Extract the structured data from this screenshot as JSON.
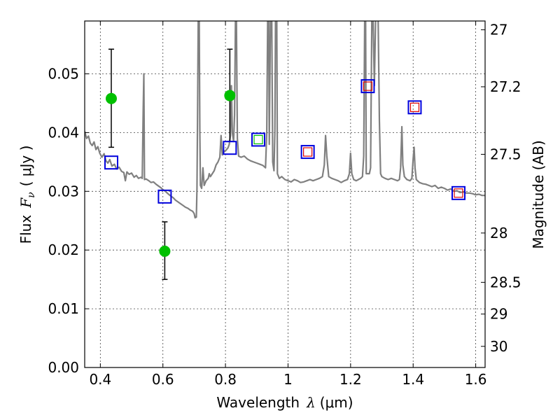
{
  "chart_data": {
    "type": "scatter",
    "xlabel_prefix": "Wavelength",
    "xlabel_symbol": "λ",
    "xlabel_unit": "(μm)",
    "ylabel_prefix": "Flux",
    "ylabel_symbol": "F",
    "ylabel_subscript": "ν",
    "ylabel_unit": "( μJy )",
    "y2label": "Magnitude (AB)",
    "xlim": [
      0.35,
      1.63
    ],
    "ylim": [
      0.0,
      0.059
    ],
    "grid": true,
    "x_ticks": [
      {
        "value": 0.4,
        "label": "0.4"
      },
      {
        "value": 0.6,
        "label": "0.6"
      },
      {
        "value": 0.8,
        "label": "0.8"
      },
      {
        "value": 1.0,
        "label": "1"
      },
      {
        "value": 1.2,
        "label": "1.2"
      },
      {
        "value": 1.4,
        "label": "1.4"
      },
      {
        "value": 1.6,
        "label": "1.6"
      }
    ],
    "y_ticks": [
      {
        "value": 0.0,
        "label": "0.00"
      },
      {
        "value": 0.01,
        "label": "0.01"
      },
      {
        "value": 0.02,
        "label": "0.02"
      },
      {
        "value": 0.03,
        "label": "0.03"
      },
      {
        "value": 0.04,
        "label": "0.04"
      },
      {
        "value": 0.05,
        "label": "0.05"
      }
    ],
    "y2_ticks": [
      {
        "flux": 0.0575,
        "label": "27"
      },
      {
        "flux": 0.0478,
        "label": "27.2"
      },
      {
        "flux": 0.0363,
        "label": "27.5"
      },
      {
        "flux": 0.0229,
        "label": "28"
      },
      {
        "flux": 0.0145,
        "label": "28.5"
      },
      {
        "flux": 0.0091,
        "label": "29"
      },
      {
        "flux": 0.0036,
        "label": "30"
      }
    ],
    "observed_points": [
      {
        "x": 0.435,
        "y": 0.0458,
        "yerr_low": 0.0375,
        "yerr_high": 0.0542,
        "color": "#00c000"
      },
      {
        "x": 0.606,
        "y": 0.0198,
        "yerr_low": 0.015,
        "yerr_high": 0.0248,
        "color": "#00c000"
      },
      {
        "x": 0.814,
        "y": 0.0463,
        "yerr_low": 0.0385,
        "yerr_high": 0.0542,
        "color": "#00c000"
      }
    ],
    "model_points": [
      {
        "x": 0.435,
        "y": 0.0349,
        "outer": "#0000dd",
        "inner": null
      },
      {
        "x": 0.606,
        "y": 0.0291,
        "outer": "#0000dd",
        "inner": null
      },
      {
        "x": 0.814,
        "y": 0.0374,
        "outer": "#0000dd",
        "inner": null
      },
      {
        "x": 0.905,
        "y": 0.0388,
        "outer": "#0000dd",
        "inner": "#00c000"
      },
      {
        "x": 1.063,
        "y": 0.0367,
        "outer": "#0000dd",
        "inner": "#dd0000"
      },
      {
        "x": 1.255,
        "y": 0.0479,
        "outer": "#0000dd",
        "inner": "#dd0000"
      },
      {
        "x": 1.405,
        "y": 0.0443,
        "outer": "#0000dd",
        "inner": "#dd0000"
      },
      {
        "x": 1.545,
        "y": 0.0297,
        "outer": "#0000dd",
        "inner": "#dd0000"
      }
    ],
    "spectrum": [
      [
        0.35,
        0.0402
      ],
      [
        0.356,
        0.039
      ],
      [
        0.362,
        0.0394
      ],
      [
        0.368,
        0.0382
      ],
      [
        0.374,
        0.0378
      ],
      [
        0.38,
        0.0384
      ],
      [
        0.386,
        0.0371
      ],
      [
        0.392,
        0.0376
      ],
      [
        0.398,
        0.0365
      ],
      [
        0.405,
        0.0358
      ],
      [
        0.412,
        0.0364
      ],
      [
        0.418,
        0.0352
      ],
      [
        0.424,
        0.0348
      ],
      [
        0.43,
        0.0354
      ],
      [
        0.437,
        0.0343
      ],
      [
        0.445,
        0.0346
      ],
      [
        0.452,
        0.0338
      ],
      [
        0.46,
        0.0341
      ],
      [
        0.468,
        0.0334
      ],
      [
        0.475,
        0.0332
      ],
      [
        0.48,
        0.0318
      ],
      [
        0.485,
        0.0333
      ],
      [
        0.492,
        0.0329
      ],
      [
        0.5,
        0.0331
      ],
      [
        0.508,
        0.0324
      ],
      [
        0.515,
        0.0327
      ],
      [
        0.522,
        0.0322
      ],
      [
        0.53,
        0.0324
      ],
      [
        0.534,
        0.0322
      ],
      [
        0.537,
        0.044
      ],
      [
        0.539,
        0.05
      ],
      [
        0.541,
        0.032
      ],
      [
        0.546,
        0.0321
      ],
      [
        0.555,
        0.0318
      ],
      [
        0.562,
        0.0315
      ],
      [
        0.57,
        0.0316
      ],
      [
        0.578,
        0.0312
      ],
      [
        0.586,
        0.0309
      ],
      [
        0.594,
        0.0306
      ],
      [
        0.6,
        0.0303
      ],
      [
        0.608,
        0.03
      ],
      [
        0.616,
        0.0296
      ],
      [
        0.625,
        0.0292
      ],
      [
        0.633,
        0.0289
      ],
      [
        0.64,
        0.0285
      ],
      [
        0.648,
        0.0282
      ],
      [
        0.656,
        0.0279
      ],
      [
        0.664,
        0.0276
      ],
      [
        0.672,
        0.0273
      ],
      [
        0.68,
        0.0271
      ],
      [
        0.688,
        0.0268
      ],
      [
        0.695,
        0.0266
      ],
      [
        0.7,
        0.0262
      ],
      [
        0.703,
        0.0255
      ],
      [
        0.707,
        0.0256
      ],
      [
        0.709,
        0.0305
      ],
      [
        0.711,
        0.044
      ],
      [
        0.713,
        0.0595
      ],
      [
        0.716,
        0.0595
      ],
      [
        0.718,
        0.04
      ],
      [
        0.72,
        0.031
      ],
      [
        0.724,
        0.0305
      ],
      [
        0.728,
        0.034
      ],
      [
        0.732,
        0.031
      ],
      [
        0.738,
        0.0318
      ],
      [
        0.745,
        0.0322
      ],
      [
        0.748,
        0.033
      ],
      [
        0.752,
        0.0325
      ],
      [
        0.758,
        0.033
      ],
      [
        0.764,
        0.0335
      ],
      [
        0.77,
        0.0345
      ],
      [
        0.776,
        0.035
      ],
      [
        0.782,
        0.0358
      ],
      [
        0.786,
        0.0395
      ],
      [
        0.79,
        0.0362
      ],
      [
        0.796,
        0.0368
      ],
      [
        0.802,
        0.037
      ],
      [
        0.808,
        0.0374
      ],
      [
        0.812,
        0.038
      ],
      [
        0.816,
        0.0395
      ],
      [
        0.819,
        0.048
      ],
      [
        0.822,
        0.04
      ],
      [
        0.826,
        0.0385
      ],
      [
        0.829,
        0.043
      ],
      [
        0.832,
        0.0595
      ],
      [
        0.835,
        0.0595
      ],
      [
        0.838,
        0.039
      ],
      [
        0.842,
        0.036
      ],
      [
        0.85,
        0.0358
      ],
      [
        0.86,
        0.036
      ],
      [
        0.87,
        0.0355
      ],
      [
        0.88,
        0.0352
      ],
      [
        0.89,
        0.035
      ],
      [
        0.9,
        0.0348
      ],
      [
        0.91,
        0.0346
      ],
      [
        0.92,
        0.0344
      ],
      [
        0.928,
        0.034
      ],
      [
        0.932,
        0.04
      ],
      [
        0.935,
        0.0595
      ],
      [
        0.938,
        0.0595
      ],
      [
        0.94,
        0.038
      ],
      [
        0.944,
        0.0595
      ],
      [
        0.948,
        0.0595
      ],
      [
        0.951,
        0.035
      ],
      [
        0.955,
        0.0335
      ],
      [
        0.958,
        0.04
      ],
      [
        0.96,
        0.0595
      ],
      [
        0.964,
        0.0595
      ],
      [
        0.966,
        0.033
      ],
      [
        0.972,
        0.0322
      ],
      [
        0.98,
        0.0325
      ],
      [
        0.99,
        0.032
      ],
      [
        1.0,
        0.0318
      ],
      [
        1.01,
        0.0316
      ],
      [
        1.02,
        0.032
      ],
      [
        1.03,
        0.0318
      ],
      [
        1.04,
        0.0315
      ],
      [
        1.05,
        0.0316
      ],
      [
        1.06,
        0.0318
      ],
      [
        1.07,
        0.032
      ],
      [
        1.08,
        0.0318
      ],
      [
        1.09,
        0.032
      ],
      [
        1.1,
        0.0322
      ],
      [
        1.11,
        0.0325
      ],
      [
        1.116,
        0.0345
      ],
      [
        1.12,
        0.0395
      ],
      [
        1.124,
        0.036
      ],
      [
        1.13,
        0.0325
      ],
      [
        1.14,
        0.0322
      ],
      [
        1.15,
        0.032
      ],
      [
        1.16,
        0.0318
      ],
      [
        1.17,
        0.0315
      ],
      [
        1.18,
        0.0318
      ],
      [
        1.19,
        0.032
      ],
      [
        1.196,
        0.033
      ],
      [
        1.2,
        0.0365
      ],
      [
        1.204,
        0.033
      ],
      [
        1.21,
        0.032
      ],
      [
        1.218,
        0.0318
      ],
      [
        1.225,
        0.032
      ],
      [
        1.232,
        0.0322
      ],
      [
        1.238,
        0.0325
      ],
      [
        1.242,
        0.036
      ],
      [
        1.245,
        0.0595
      ],
      [
        1.248,
        0.0595
      ],
      [
        1.25,
        0.033
      ],
      [
        1.256,
        0.033
      ],
      [
        1.26,
        0.033
      ],
      [
        1.264,
        0.034
      ],
      [
        1.268,
        0.0595
      ],
      [
        1.272,
        0.0595
      ],
      [
        1.276,
        0.048
      ],
      [
        1.28,
        0.0595
      ],
      [
        1.288,
        0.0595
      ],
      [
        1.292,
        0.042
      ],
      [
        1.296,
        0.033
      ],
      [
        1.3,
        0.0325
      ],
      [
        1.31,
        0.0322
      ],
      [
        1.32,
        0.032
      ],
      [
        1.33,
        0.0322
      ],
      [
        1.34,
        0.032
      ],
      [
        1.35,
        0.0318
      ],
      [
        1.356,
        0.032
      ],
      [
        1.36,
        0.034
      ],
      [
        1.364,
        0.041
      ],
      [
        1.367,
        0.0345
      ],
      [
        1.372,
        0.0325
      ],
      [
        1.38,
        0.032
      ],
      [
        1.39,
        0.0318
      ],
      [
        1.396,
        0.0322
      ],
      [
        1.4,
        0.0355
      ],
      [
        1.403,
        0.0375
      ],
      [
        1.406,
        0.034
      ],
      [
        1.41,
        0.032
      ],
      [
        1.42,
        0.0315
      ],
      [
        1.43,
        0.0313
      ],
      [
        1.44,
        0.0312
      ],
      [
        1.45,
        0.031
      ],
      [
        1.46,
        0.0308
      ],
      [
        1.47,
        0.031
      ],
      [
        1.48,
        0.0305
      ],
      [
        1.49,
        0.0307
      ],
      [
        1.5,
        0.0305
      ],
      [
        1.51,
        0.0302
      ],
      [
        1.52,
        0.0304
      ],
      [
        1.53,
        0.03
      ],
      [
        1.54,
        0.0301
      ],
      [
        1.55,
        0.0298
      ],
      [
        1.56,
        0.0299
      ],
      [
        1.57,
        0.0297
      ],
      [
        1.58,
        0.0297
      ],
      [
        1.59,
        0.0296
      ],
      [
        1.6,
        0.0294
      ],
      [
        1.61,
        0.0295
      ],
      [
        1.62,
        0.0293
      ],
      [
        1.63,
        0.0293
      ]
    ]
  }
}
